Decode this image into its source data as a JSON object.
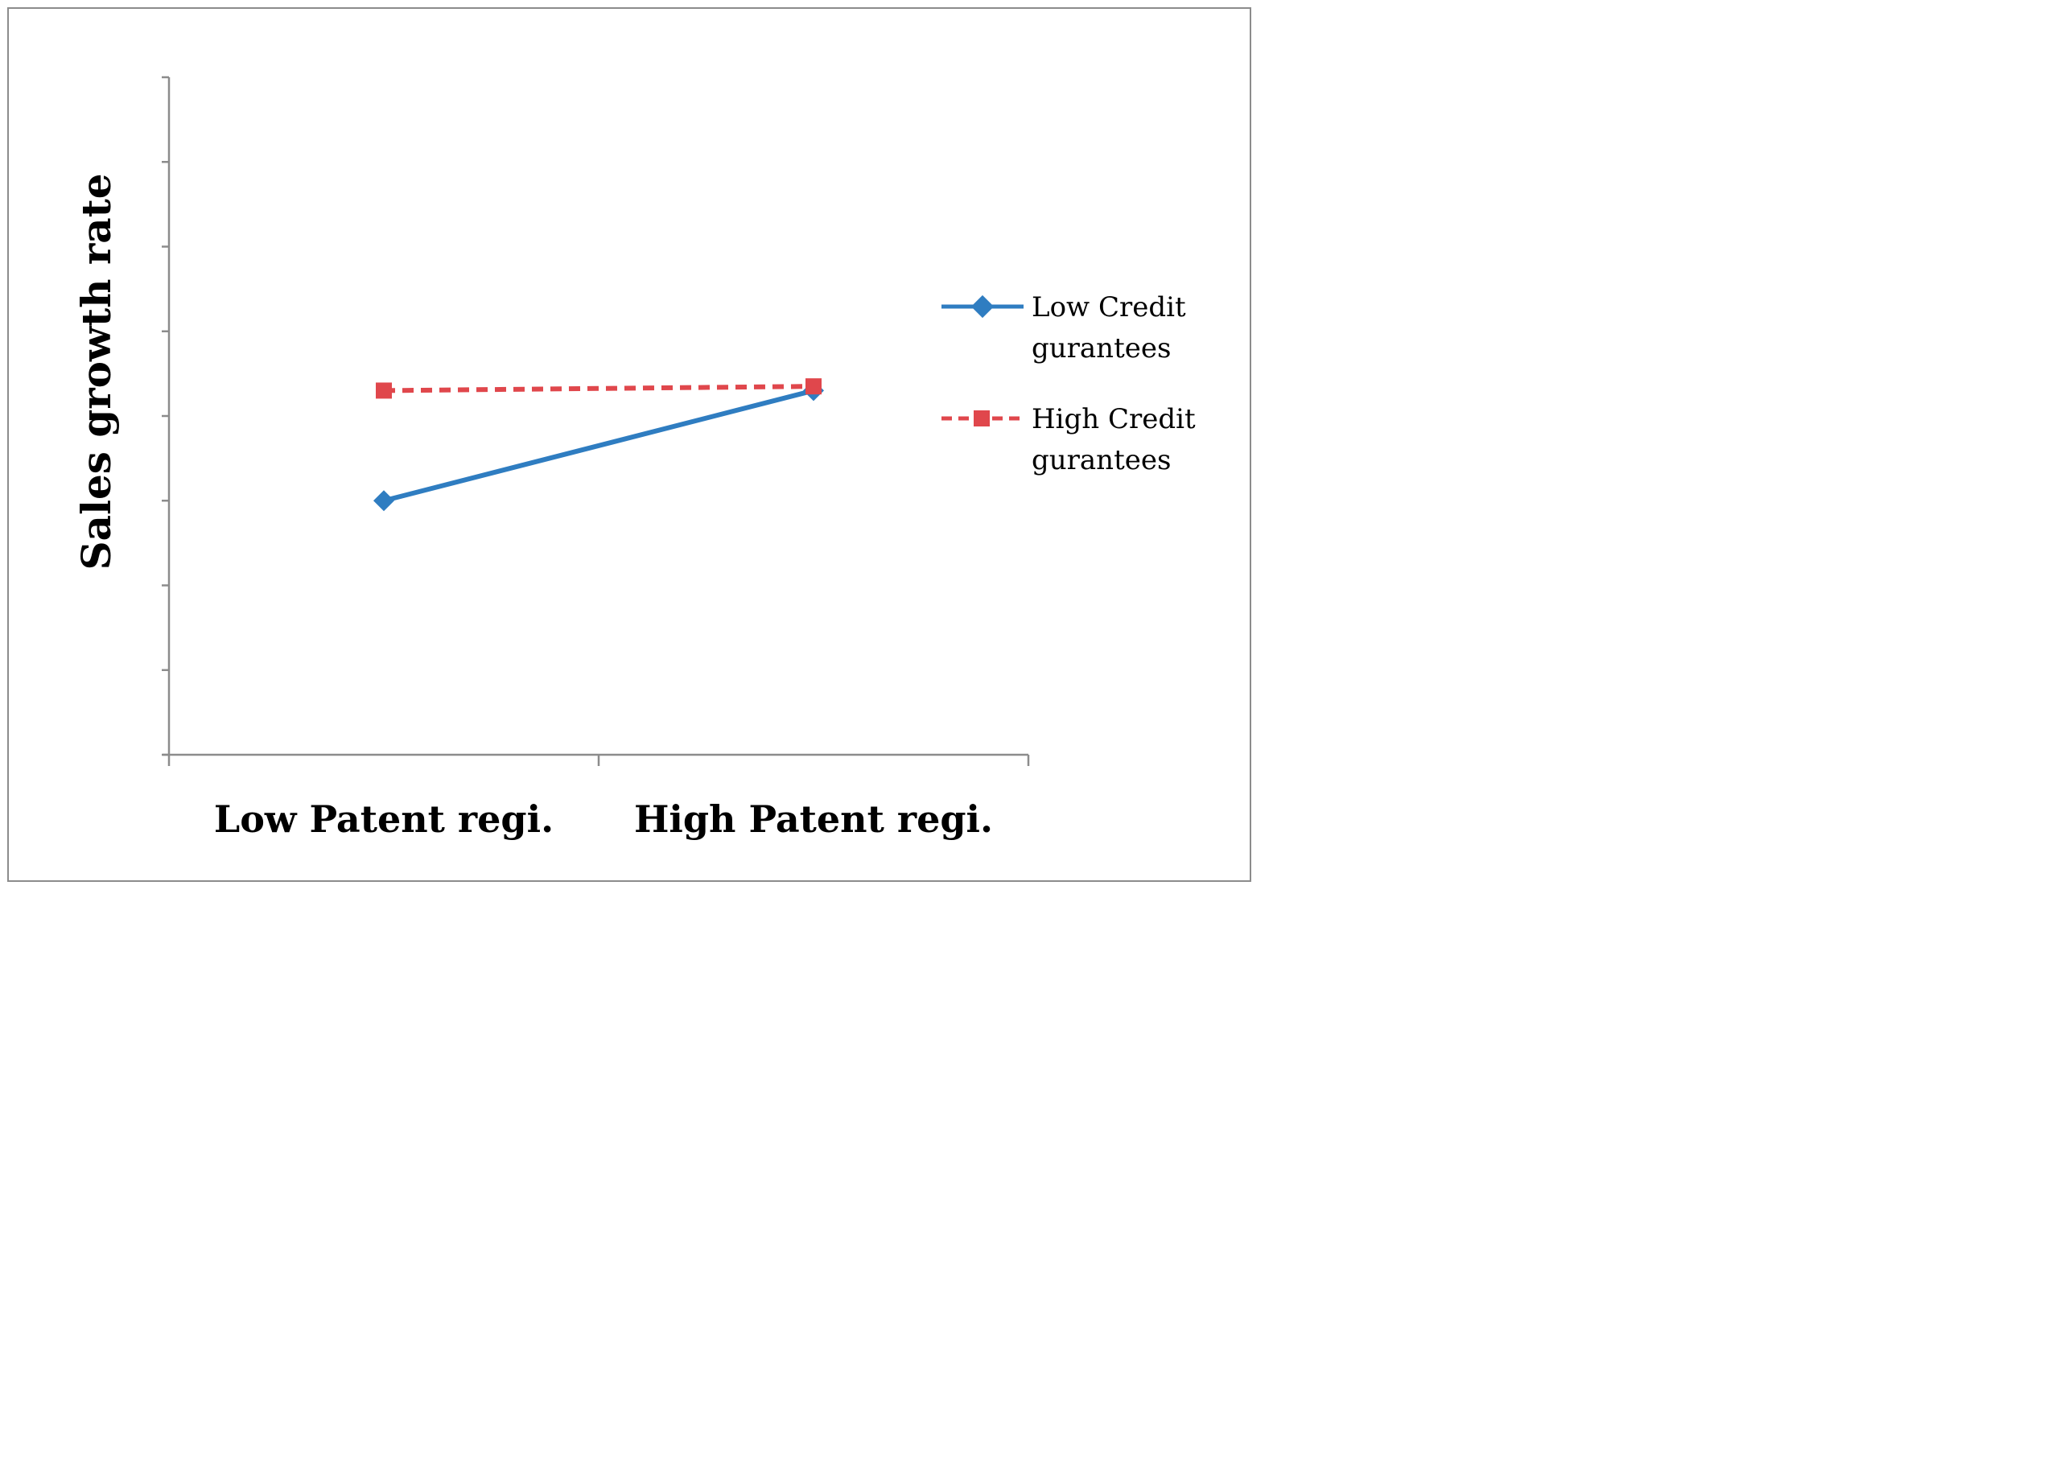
{
  "chart_data": {
    "type": "line",
    "title": "",
    "xlabel": "",
    "ylabel": "Sales growth rate",
    "categories": [
      "Low Patent regi.",
      "High Patent regi."
    ],
    "ylim": [
      0,
      8
    ],
    "y_tick_count": 9,
    "y_tick_labels_shown": false,
    "grid": false,
    "legend_position": "right",
    "series": [
      {
        "name": "Low Credit gurantees",
        "legend_lines": [
          "Low Credit",
          "gurantees"
        ],
        "values": [
          3.0,
          4.3
        ],
        "color": "#2f7dc1",
        "line_style": "solid",
        "marker": "diamond"
      },
      {
        "name": "High Credit gurantees",
        "legend_lines": [
          "High Credit",
          "gurantees"
        ],
        "values": [
          4.3,
          4.35
        ],
        "color": "#e0474c",
        "line_style": "dashed",
        "marker": "square"
      }
    ]
  }
}
